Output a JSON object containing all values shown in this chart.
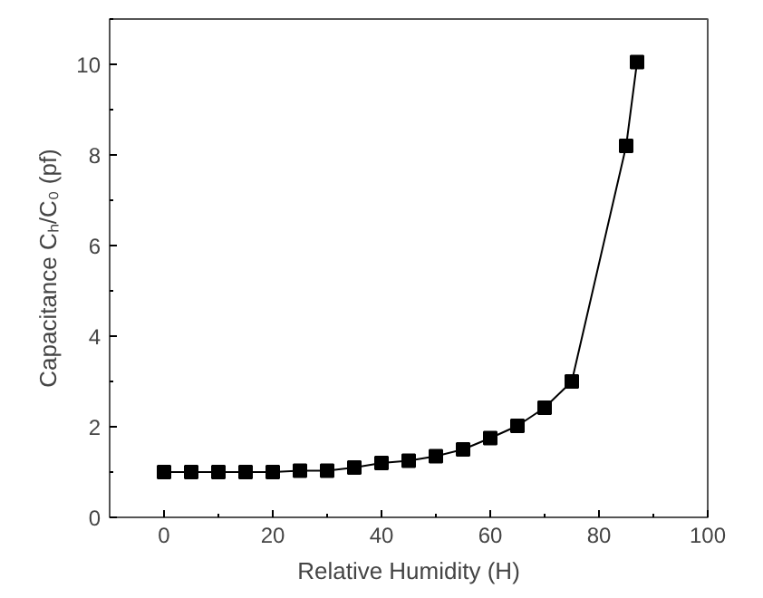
{
  "chart_data": {
    "type": "line",
    "xlabel": "Relative Humidity (H)",
    "ylabel": "Capacitance Cₕ/C₀ (pf)",
    "x": [
      0,
      5,
      10,
      15,
      20,
      25,
      30,
      35,
      40,
      45,
      50,
      55,
      60,
      65,
      70,
      75,
      85,
      87
    ],
    "series": [
      {
        "color": "#000000",
        "values": [
          1.0,
          1.0,
          1.0,
          1.0,
          1.0,
          1.03,
          1.03,
          1.1,
          1.2,
          1.25,
          1.35,
          1.5,
          1.75,
          2.02,
          2.42,
          3.0,
          8.2,
          10.05
        ]
      }
    ],
    "xlim": [
      -10,
      100
    ],
    "ylim": [
      0,
      11
    ],
    "xticks": [
      0,
      20,
      40,
      60,
      80,
      100
    ],
    "yticks": [
      0,
      2,
      4,
      6,
      8,
      10
    ],
    "marker": "square",
    "line_style": "solid"
  }
}
